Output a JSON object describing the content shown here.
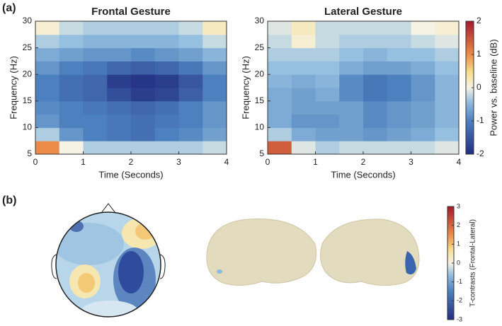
{
  "panel_labels": [
    "(a)",
    "(b)"
  ],
  "chart_data": [
    {
      "type": "heatmap",
      "title": "Frontal Gesture",
      "x_label": "Time (Seconds)",
      "y_label": "Frequency (Hz)",
      "xlim": [
        0,
        4
      ],
      "xticks": [
        0,
        1,
        2,
        3,
        4
      ],
      "ylim": [
        5,
        30
      ],
      "yticks": [
        5,
        10,
        15,
        20,
        25,
        30
      ],
      "x": [
        0.25,
        0.75,
        1.25,
        1.75,
        2.25,
        2.75,
        3.25,
        3.75
      ],
      "y": [
        6.25,
        8.75,
        11.25,
        13.75,
        16.25,
        18.75,
        21.25,
        23.75,
        26.25,
        28.75
      ],
      "values": [
        [
          1.0,
          0.0,
          -0.3,
          -0.3,
          -0.3,
          -0.3,
          -0.3,
          -0.2
        ],
        [
          -0.3,
          -0.8,
          -1.0,
          -1.1,
          -1.2,
          -1.0,
          -0.9,
          -0.7
        ],
        [
          -0.8,
          -1.0,
          -1.0,
          -1.1,
          -1.2,
          -1.1,
          -1.0,
          -0.8
        ],
        [
          -0.9,
          -1.0,
          -1.1,
          -1.2,
          -1.3,
          -1.2,
          -1.0,
          -0.8
        ],
        [
          -1.0,
          -1.2,
          -1.3,
          -1.6,
          -1.8,
          -1.7,
          -1.4,
          -1.0
        ],
        [
          -1.0,
          -1.2,
          -1.3,
          -1.8,
          -1.9,
          -1.8,
          -1.5,
          -1.0
        ],
        [
          -0.8,
          -1.0,
          -1.1,
          -1.3,
          -1.4,
          -1.3,
          -1.1,
          -0.8
        ],
        [
          -0.6,
          -0.7,
          -0.8,
          -0.8,
          -0.9,
          -0.8,
          -0.7,
          -0.5
        ],
        [
          -0.3,
          -0.4,
          -0.5,
          -0.5,
          -0.5,
          -0.5,
          -0.4,
          -0.2
        ],
        [
          0.1,
          -0.2,
          -0.3,
          -0.3,
          -0.3,
          -0.3,
          -0.2,
          0.2
        ]
      ]
    },
    {
      "type": "heatmap",
      "title": "Lateral Gesture",
      "x_label": "Time (Seconds)",
      "y_label": "Frequency (Hz)",
      "xlim": [
        0,
        4
      ],
      "xticks": [
        0,
        1,
        2,
        3,
        4
      ],
      "ylim": [
        5,
        30
      ],
      "yticks": [
        5,
        10,
        15,
        20,
        25,
        30
      ],
      "x": [
        0.25,
        0.75,
        1.25,
        1.75,
        2.25,
        2.75,
        3.25,
        3.75
      ],
      "y": [
        6.25,
        8.75,
        11.25,
        13.75,
        16.25,
        18.75,
        21.25,
        23.75,
        26.25,
        28.75
      ],
      "values": [
        [
          1.4,
          -0.1,
          -0.3,
          -0.2,
          -0.2,
          -0.2,
          -0.2,
          -0.1
        ],
        [
          -0.3,
          -0.6,
          -0.7,
          -0.7,
          -0.8,
          -0.7,
          -0.6,
          -0.4
        ],
        [
          -0.6,
          -0.8,
          -0.8,
          -0.7,
          -0.9,
          -0.8,
          -0.7,
          -0.5
        ],
        [
          -0.6,
          -0.7,
          -0.7,
          -0.7,
          -0.9,
          -0.8,
          -0.7,
          -0.5
        ],
        [
          -0.6,
          -0.7,
          -0.6,
          -0.9,
          -1.1,
          -1.0,
          -0.8,
          -0.5
        ],
        [
          -0.5,
          -0.6,
          -0.5,
          -0.9,
          -1.1,
          -1.0,
          -0.8,
          -0.5
        ],
        [
          -0.4,
          -0.4,
          -0.4,
          -0.6,
          -0.7,
          -0.7,
          -0.6,
          -0.4
        ],
        [
          -0.3,
          -0.3,
          -0.3,
          -0.4,
          -0.5,
          -0.4,
          -0.4,
          -0.3
        ],
        [
          -0.2,
          0.1,
          -0.2,
          -0.3,
          -0.3,
          -0.3,
          -0.2,
          -0.1
        ],
        [
          -0.1,
          0.2,
          -0.2,
          -0.2,
          -0.2,
          -0.2,
          0.0,
          0.1
        ]
      ]
    },
    {
      "type": "colorbar",
      "label": "Power vs. baseline (dB)",
      "clim": [
        -2,
        2
      ],
      "ticks": [
        -2,
        -1,
        0,
        1,
        2
      ]
    },
    {
      "type": "colorbar",
      "label": "T-contrasts (Frontal-Lateral)",
      "clim": [
        -3,
        3
      ],
      "ticks": [
        -3,
        -2,
        -1,
        0,
        1,
        2,
        3
      ]
    }
  ]
}
